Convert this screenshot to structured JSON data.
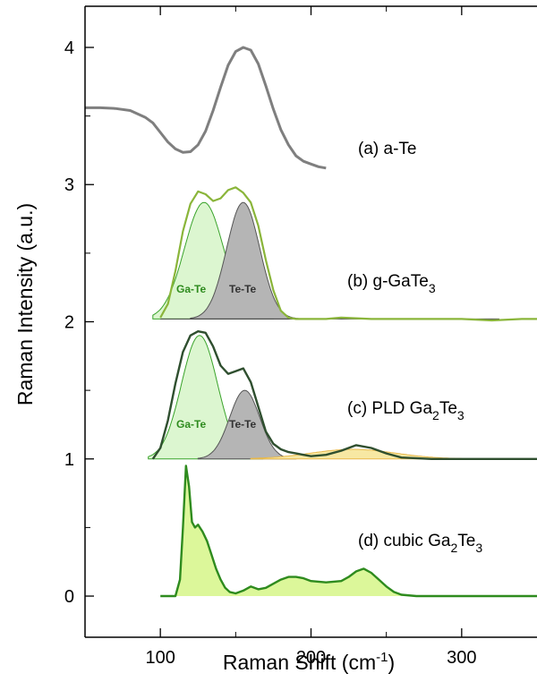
{
  "chart_data": {
    "type": "line",
    "xlabel": "Raman Shift (cm",
    "xlabel_sup": "-1",
    "xlabel_close": ")",
    "ylabel": "Raman Intensity (a.u.)",
    "xlim": [
      50,
      350
    ],
    "ylim": [
      -0.3,
      4.3
    ],
    "x_ticks": [
      100,
      200,
      300
    ],
    "y_ticks": [
      0,
      1,
      2,
      3,
      4
    ],
    "grid": false,
    "colors": {
      "a_Te": "#7f7f7f",
      "g_GaTe3": "#8ab53a",
      "PLD_line": "#2f4f2f",
      "cubic_line": "#2e8b1e",
      "cubic_fill": "#dcf79a",
      "GaTe_fill": "#d6f5c8",
      "GaTe_line": "#39a32a",
      "TeTe_fill": "#b5b5b5",
      "orange_fill": "#f7e8a3",
      "orange_line": "#e8b84a"
    },
    "series": [
      {
        "key": "a_Te",
        "x": [
          50,
          60,
          70,
          80,
          90,
          95,
          100,
          105,
          110,
          115,
          120,
          125,
          130,
          135,
          140,
          145,
          150,
          155,
          160,
          165,
          170,
          175,
          180,
          185,
          190,
          195,
          200,
          205,
          210
        ],
        "y": [
          3.56,
          3.56,
          3.555,
          3.54,
          3.49,
          3.45,
          3.38,
          3.31,
          3.26,
          3.235,
          3.24,
          3.29,
          3.39,
          3.54,
          3.71,
          3.87,
          3.97,
          4.0,
          3.98,
          3.88,
          3.72,
          3.55,
          3.4,
          3.29,
          3.21,
          3.17,
          3.15,
          3.13,
          3.12
        ]
      },
      {
        "key": "g_GaTe3",
        "x": [
          100,
          105,
          110,
          115,
          120,
          125,
          130,
          135,
          140,
          145,
          150,
          155,
          160,
          165,
          170,
          175,
          180,
          185,
          190,
          200,
          210,
          220,
          240,
          260,
          280,
          300,
          320,
          340,
          350
        ],
        "y": [
          2.03,
          2.13,
          2.37,
          2.66,
          2.86,
          2.95,
          2.93,
          2.88,
          2.9,
          2.96,
          2.98,
          2.94,
          2.87,
          2.7,
          2.45,
          2.23,
          2.08,
          2.03,
          2.02,
          2.02,
          2.02,
          2.03,
          2.02,
          2.02,
          2.02,
          2.02,
          2.01,
          2.02,
          2.02
        ]
      },
      {
        "key": "PLD",
        "x": [
          95,
          100,
          105,
          110,
          115,
          120,
          125,
          130,
          135,
          140,
          145,
          150,
          155,
          160,
          165,
          170,
          175,
          180,
          185,
          190,
          195,
          200,
          210,
          220,
          230,
          240,
          250,
          260,
          280,
          300,
          320,
          340,
          350
        ],
        "y": [
          1.0,
          1.08,
          1.28,
          1.55,
          1.78,
          1.9,
          1.93,
          1.92,
          1.82,
          1.68,
          1.62,
          1.64,
          1.66,
          1.56,
          1.38,
          1.2,
          1.11,
          1.07,
          1.05,
          1.04,
          1.03,
          1.02,
          1.03,
          1.06,
          1.1,
          1.08,
          1.04,
          1.01,
          1.0,
          1.0,
          1.0,
          1.0,
          1.0
        ]
      },
      {
        "key": "cubic",
        "x": [
          100,
          110,
          113,
          115,
          117,
          119,
          121,
          123,
          125,
          128,
          131,
          134,
          137,
          140,
          143,
          146,
          150,
          155,
          160,
          165,
          170,
          175,
          180,
          185,
          190,
          195,
          200,
          210,
          220,
          225,
          230,
          235,
          240,
          245,
          250,
          255,
          260,
          270,
          290,
          310,
          330,
          350
        ],
        "y": [
          0.0,
          0.0,
          0.12,
          0.5,
          0.95,
          0.8,
          0.54,
          0.5,
          0.52,
          0.47,
          0.4,
          0.3,
          0.2,
          0.12,
          0.06,
          0.03,
          0.02,
          0.04,
          0.07,
          0.05,
          0.06,
          0.09,
          0.12,
          0.14,
          0.14,
          0.13,
          0.11,
          0.1,
          0.11,
          0.14,
          0.18,
          0.2,
          0.17,
          0.12,
          0.07,
          0.03,
          0.01,
          0.0,
          0.0,
          0.0,
          0.0,
          0.0
        ]
      }
    ],
    "fit_peaks": [
      {
        "key": "gGaTe3_GaTe",
        "baseline": 2.02,
        "center": 129,
        "amp": 0.85,
        "sigma": 13,
        "from": 95,
        "to": 175
      },
      {
        "key": "gGaTe3_TeTe",
        "baseline": 2.02,
        "center": 155,
        "amp": 0.85,
        "sigma": 11,
        "from": 120,
        "to": 195
      },
      {
        "key": "PLD_GaTe",
        "baseline": 1.0,
        "center": 126,
        "amp": 0.9,
        "sigma": 12,
        "from": 92,
        "to": 168
      },
      {
        "key": "PLD_TeTe",
        "baseline": 1.0,
        "center": 156,
        "amp": 0.5,
        "sigma": 10,
        "from": 125,
        "to": 190
      },
      {
        "key": "PLD_broad",
        "baseline": 1.0,
        "center": 228,
        "amp": 0.07,
        "sigma": 28,
        "from": 160,
        "to": 300
      }
    ],
    "annotations": {
      "a_Te": "(a) a-Te",
      "g_GaTe3": "(b) g-GaTe",
      "g_GaTe3_sub": "3",
      "PLD": "(c) PLD Ga",
      "PLD_sub1": "2",
      "PLD_mid": "Te",
      "PLD_sub2": "3",
      "cubic": "(d) cubic Ga",
      "cubic_sub1": "2",
      "cubic_mid": "Te",
      "cubic_sub2": "3",
      "peak_GaTe": "Ga-Te",
      "peak_TeTe": "Te-Te"
    }
  }
}
